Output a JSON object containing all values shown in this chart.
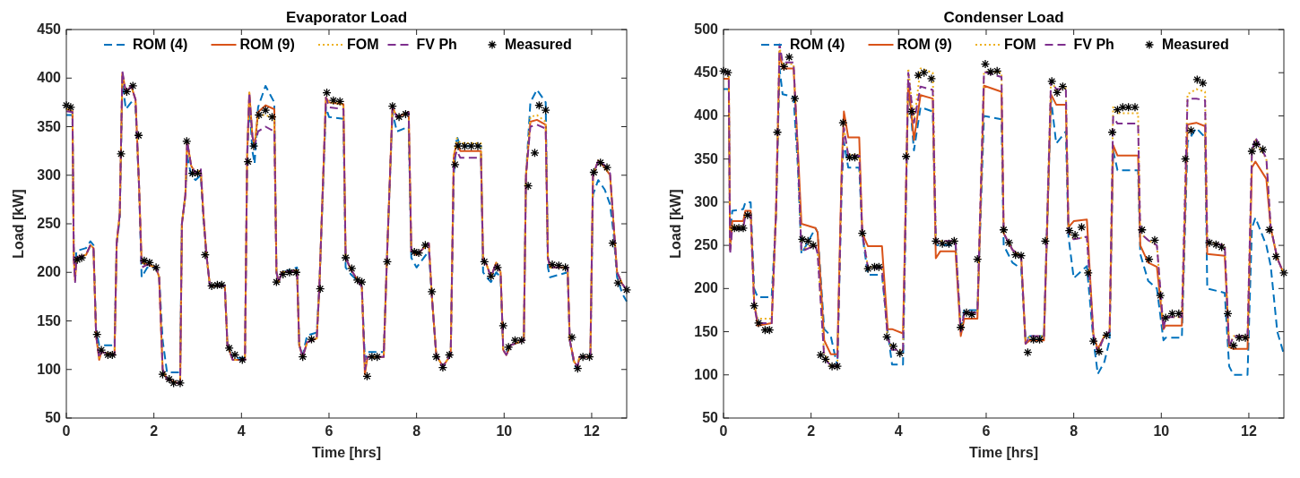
{
  "chart_data": [
    {
      "type": "line",
      "title": "Evaporator Load",
      "xlabel": "Time [hrs]",
      "ylabel": "Load [kW]",
      "xlim": [
        0,
        12.8
      ],
      "xticks": [
        0,
        2,
        4,
        6,
        8,
        10,
        12
      ],
      "ylim": [
        50,
        450
      ],
      "yticks": [
        50,
        100,
        150,
        200,
        250,
        300,
        350,
        400,
        450
      ],
      "grid": false,
      "legend": "top",
      "marker": "none",
      "x": [
        0,
        0.14,
        0.17,
        0.2,
        0.23,
        0.45,
        0.55,
        0.62,
        0.68,
        0.75,
        0.8,
        1.1,
        1.15,
        1.22,
        1.28,
        1.36,
        1.48,
        1.58,
        1.66,
        1.72,
        1.85,
        2.05,
        2.12,
        2.2,
        2.3,
        2.6,
        2.64,
        2.72,
        2.76,
        2.85,
        2.95,
        3.07,
        3.13,
        3.2,
        3.28,
        3.62,
        3.68,
        3.8,
        4.08,
        4.13,
        4.18,
        4.25,
        4.3,
        4.38,
        4.55,
        4.75,
        4.8,
        4.85,
        4.92,
        5.27,
        5.32,
        5.4,
        5.5,
        5.72,
        5.78,
        5.93,
        6.0,
        6.33,
        6.38,
        6.5,
        6.68,
        6.75,
        6.82,
        6.88,
        7.25,
        7.32,
        7.45,
        7.55,
        7.82,
        7.88,
        8.0,
        8.28,
        8.35,
        8.45,
        8.6,
        8.78,
        8.85,
        8.92,
        9.0,
        9.47,
        9.52,
        9.6,
        9.7,
        9.82,
        9.92,
        9.98,
        10.05,
        10.15,
        10.45,
        10.5,
        10.6,
        10.75,
        10.95,
        11.0,
        11.05,
        11.45,
        11.5,
        11.6,
        11.68,
        11.72,
        11.97,
        12.03,
        12.15,
        12.3,
        12.42,
        12.5,
        12.58,
        12.7,
        12.8
      ],
      "series": [
        {
          "name": "ROM (4)",
          "color": "#0072bd",
          "line_style": "dashed",
          "values": [
            362,
            362,
            220,
            200,
            222,
            225,
            232,
            228,
            140,
            125,
            125,
            125,
            230,
            255,
            395,
            368,
            375,
            370,
            290,
            195,
            205,
            205,
            195,
            130,
            97,
            97,
            250,
            280,
            320,
            300,
            295,
            300,
            255,
            218,
            185,
            186,
            125,
            112,
            112,
            315,
            375,
            325,
            312,
            370,
            392,
            375,
            200,
            190,
            200,
            205,
            125,
            115,
            135,
            138,
            185,
            370,
            360,
            358,
            205,
            198,
            190,
            185,
            110,
            118,
            118,
            210,
            365,
            345,
            350,
            215,
            205,
            222,
            175,
            115,
            103,
            115,
            300,
            340,
            330,
            330,
            200,
            195,
            190,
            200,
            195,
            120,
            118,
            125,
            130,
            300,
            375,
            388,
            375,
            205,
            195,
            200,
            130,
            105,
            100,
            113,
            113,
            280,
            295,
            285,
            270,
            240,
            195,
            178,
            170
          ]
        },
        {
          "name": "ROM (9)",
          "color": "#d95319",
          "line_style": "solid",
          "values": [
            368,
            366,
            215,
            192,
            215,
            218,
            228,
            225,
            135,
            110,
            118,
            115,
            230,
            260,
            405,
            385,
            392,
            378,
            290,
            210,
            208,
            205,
            195,
            100,
            90,
            85,
            250,
            280,
            335,
            310,
            302,
            305,
            260,
            218,
            186,
            186,
            125,
            110,
            110,
            320,
            385,
            340,
            330,
            365,
            372,
            368,
            200,
            190,
            200,
            202,
            125,
            113,
            128,
            132,
            185,
            380,
            375,
            373,
            215,
            203,
            190,
            185,
            95,
            113,
            113,
            210,
            370,
            360,
            365,
            222,
            218,
            230,
            175,
            115,
            103,
            115,
            320,
            333,
            325,
            325,
            212,
            208,
            195,
            210,
            200,
            120,
            115,
            125,
            130,
            300,
            355,
            357,
            352,
            215,
            205,
            205,
            130,
            108,
            103,
            113,
            113,
            300,
            315,
            308,
            300,
            250,
            200,
            188,
            182
          ]
        },
        {
          "name": "FOM",
          "color": "#edb120",
          "line_style": "dotted",
          "values": [
            368,
            366,
            215,
            192,
            215,
            218,
            228,
            225,
            135,
            112,
            118,
            115,
            230,
            260,
            405,
            385,
            392,
            378,
            290,
            210,
            208,
            205,
            195,
            100,
            90,
            85,
            250,
            280,
            335,
            310,
            302,
            305,
            260,
            218,
            186,
            186,
            125,
            110,
            110,
            320,
            385,
            340,
            330,
            362,
            362,
            358,
            200,
            190,
            200,
            202,
            125,
            113,
            128,
            132,
            185,
            380,
            375,
            373,
            215,
            203,
            190,
            185,
            100,
            113,
            113,
            210,
            370,
            360,
            365,
            222,
            218,
            230,
            175,
            115,
            103,
            115,
            320,
            338,
            333,
            333,
            212,
            208,
            195,
            210,
            200,
            120,
            115,
            125,
            130,
            300,
            360,
            362,
            355,
            215,
            205,
            205,
            130,
            108,
            103,
            113,
            113,
            300,
            315,
            308,
            300,
            250,
            200,
            188,
            182
          ]
        },
        {
          "name": "FV Ph",
          "color": "#7e2f8e",
          "line_style": "dashed",
          "values": [
            366,
            365,
            215,
            190,
            215,
            218,
            228,
            225,
            135,
            112,
            118,
            115,
            230,
            260,
            407,
            385,
            392,
            378,
            290,
            205,
            208,
            205,
            195,
            100,
            90,
            85,
            250,
            280,
            335,
            310,
            302,
            307,
            260,
            218,
            186,
            186,
            125,
            110,
            110,
            320,
            385,
            340,
            330,
            345,
            350,
            345,
            200,
            190,
            200,
            202,
            125,
            113,
            128,
            132,
            185,
            380,
            370,
            368,
            215,
            203,
            190,
            185,
            100,
            113,
            113,
            210,
            370,
            360,
            365,
            222,
            218,
            230,
            175,
            115,
            103,
            115,
            315,
            325,
            318,
            318,
            212,
            208,
            195,
            210,
            200,
            120,
            115,
            125,
            130,
            300,
            350,
            352,
            348,
            215,
            205,
            205,
            130,
            108,
            103,
            113,
            113,
            300,
            315,
            310,
            302,
            250,
            200,
            188,
            182
          ]
        },
        {
          "name": "Measured",
          "type": "scatter",
          "color": "#000000",
          "marker": "cross",
          "x": [
            0,
            0.1,
            0.25,
            0.35,
            0.7,
            0.8,
            0.95,
            1.05,
            1.25,
            1.38,
            1.52,
            1.65,
            1.78,
            1.9,
            2.05,
            2.2,
            2.35,
            2.45,
            2.6,
            2.75,
            2.88,
            3.0,
            3.17,
            3.32,
            3.45,
            3.55,
            3.72,
            3.85,
            4.02,
            4.15,
            4.28,
            4.4,
            4.55,
            4.7,
            4.8,
            4.95,
            5.1,
            5.25,
            5.4,
            5.6,
            5.8,
            5.95,
            6.1,
            6.25,
            6.38,
            6.52,
            6.65,
            6.75,
            6.87,
            6.98,
            7.1,
            7.33,
            7.45,
            7.6,
            7.75,
            7.95,
            8.05,
            8.2,
            8.35,
            8.45,
            8.6,
            8.75,
            8.88,
            8.95,
            9.1,
            9.25,
            9.4,
            9.55,
            9.7,
            9.85,
            9.98,
            10.1,
            10.25,
            10.4,
            10.55,
            10.7,
            10.8,
            10.95,
            11.1,
            11.25,
            11.4,
            11.55,
            11.68,
            11.8,
            11.95,
            12.05,
            12.2,
            12.35,
            12.48,
            12.6,
            12.8
          ],
          "values": [
            372,
            370,
            213,
            215,
            136,
            120,
            115,
            115,
            322,
            386,
            392,
            341,
            212,
            210,
            205,
            95,
            90,
            86,
            86,
            335,
            302,
            302,
            218,
            186,
            187,
            187,
            122,
            115,
            110,
            314,
            330,
            362,
            367,
            360,
            190,
            198,
            200,
            200,
            113,
            131,
            183,
            385,
            377,
            376,
            215,
            204,
            192,
            190,
            93,
            113,
            113,
            211,
            371,
            360,
            363,
            221,
            220,
            228,
            180,
            113,
            102,
            115,
            311,
            330,
            330,
            330,
            330,
            211,
            196,
            205,
            145,
            123,
            130,
            130,
            289,
            323,
            372,
            367,
            208,
            207,
            205,
            133,
            101,
            113,
            113,
            303,
            313,
            308,
            230,
            189,
            182
          ]
        }
      ]
    },
    {
      "type": "line",
      "title": "Condenser Load",
      "xlabel": "Time [hrs]",
      "ylabel": "Load [kW]",
      "xlim": [
        0,
        12.8
      ],
      "xticks": [
        0,
        2,
        4,
        6,
        8,
        10,
        12
      ],
      "ylim": [
        50,
        500
      ],
      "yticks": [
        50,
        100,
        150,
        200,
        250,
        300,
        350,
        400,
        450,
        500
      ],
      "grid": false,
      "legend": "top",
      "marker": "none",
      "x": [
        0,
        0.12,
        0.15,
        0.2,
        0.45,
        0.5,
        0.62,
        0.7,
        0.78,
        1.1,
        1.2,
        1.28,
        1.35,
        1.6,
        1.7,
        1.78,
        2.1,
        2.15,
        2.3,
        2.45,
        2.6,
        2.7,
        2.75,
        2.85,
        3.1,
        3.17,
        3.3,
        3.62,
        3.75,
        3.85,
        4.1,
        4.22,
        4.35,
        4.5,
        4.78,
        4.85,
        4.95,
        5.3,
        5.42,
        5.5,
        5.8,
        5.95,
        6.35,
        6.4,
        6.6,
        6.8,
        6.9,
        7.0,
        7.32,
        7.48,
        7.6,
        7.82,
        7.88,
        8.0,
        8.3,
        8.45,
        8.55,
        8.7,
        8.82,
        8.9,
        9.0,
        9.47,
        9.52,
        9.7,
        9.9,
        10.05,
        10.1,
        10.47,
        10.6,
        10.8,
        11.0,
        11.05,
        11.45,
        11.55,
        11.65,
        11.97,
        12.07,
        12.15,
        12.4,
        12.5,
        12.65,
        12.8
      ],
      "series": [
        {
          "name": "ROM (4)",
          "color": "#0072bd",
          "line_style": "dashed",
          "values": [
            431,
            431,
            260,
            290,
            292,
            300,
            300,
            200,
            190,
            190,
            285,
            455,
            425,
            422,
            340,
            240,
            270,
            265,
            153,
            145,
            110,
            320,
            370,
            340,
            340,
            262,
            216,
            216,
            150,
            112,
            112,
            440,
            360,
            410,
            405,
            250,
            250,
            250,
            150,
            175,
            175,
            400,
            396,
            250,
            230,
            223,
            140,
            145,
            145,
            420,
            368,
            382,
            260,
            212,
            226,
            140,
            101,
            115,
            140,
            360,
            337,
            337,
            240,
            209,
            200,
            140,
            143,
            143,
            370,
            386,
            375,
            200,
            195,
            110,
            100,
            100,
            270,
            282,
            250,
            226,
            150,
            124
          ]
        },
        {
          "name": "ROM (9)",
          "color": "#d95319",
          "line_style": "solid",
          "values": [
            443,
            443,
            245,
            278,
            278,
            290,
            290,
            185,
            157,
            160,
            290,
            475,
            455,
            455,
            360,
            275,
            270,
            265,
            140,
            124,
            124,
            340,
            405,
            375,
            375,
            264,
            249,
            249,
            153,
            153,
            148,
            440,
            372,
            424,
            420,
            235,
            243,
            243,
            145,
            165,
            165,
            435,
            428,
            264,
            245,
            236,
            136,
            140,
            140,
            425,
            413,
            413,
            271,
            278,
            280,
            146,
            130,
            145,
            150,
            366,
            354,
            354,
            250,
            230,
            225,
            153,
            157,
            157,
            390,
            392,
            388,
            240,
            238,
            132,
            130,
            130,
            340,
            347,
            327,
            270,
            235,
            217
          ]
        },
        {
          "name": "FOM",
          "color": "#edb120",
          "line_style": "dotted",
          "values": [
            452,
            450,
            245,
            272,
            272,
            285,
            285,
            180,
            165,
            165,
            290,
            480,
            460,
            460,
            350,
            245,
            252,
            240,
            125,
            110,
            110,
            330,
            385,
            355,
            355,
            264,
            225,
            225,
            143,
            129,
            129,
            455,
            392,
            455,
            450,
            254,
            255,
            255,
            150,
            172,
            172,
            451,
            450,
            264,
            245,
            236,
            136,
            145,
            145,
            441,
            430,
            432,
            265,
            257,
            260,
            146,
            126,
            145,
            150,
            410,
            403,
            403,
            264,
            256,
            250,
            153,
            167,
            167,
            425,
            431,
            428,
            254,
            250,
            132,
            145,
            145,
            358,
            372,
            350,
            271,
            235,
            217
          ]
        },
        {
          "name": "FV Ph",
          "color": "#7e2f8e",
          "line_style": "dashed",
          "values": [
            450,
            450,
            240,
            270,
            270,
            285,
            285,
            180,
            160,
            160,
            288,
            483,
            462,
            462,
            350,
            243,
            250,
            240,
            120,
            110,
            110,
            330,
            386,
            354,
            354,
            264,
            224,
            224,
            143,
            129,
            129,
            450,
            392,
            434,
            430,
            254,
            255,
            255,
            150,
            172,
            172,
            451,
            445,
            264,
            245,
            236,
            136,
            145,
            145,
            441,
            431,
            431,
            265,
            257,
            260,
            146,
            126,
            145,
            150,
            399,
            391,
            391,
            264,
            256,
            250,
            153,
            167,
            167,
            420,
            420,
            418,
            254,
            250,
            132,
            145,
            145,
            358,
            375,
            351,
            271,
            235,
            217
          ]
        },
        {
          "name": "Measured",
          "type": "scatter",
          "color": "#000000",
          "marker": "cross",
          "x": [
            0,
            0.1,
            0.25,
            0.35,
            0.45,
            0.55,
            0.7,
            0.8,
            0.95,
            1.05,
            1.23,
            1.38,
            1.5,
            1.63,
            1.8,
            1.93,
            2.05,
            2.22,
            2.33,
            2.48,
            2.6,
            2.73,
            2.88,
            3.0,
            3.17,
            3.3,
            3.45,
            3.55,
            3.73,
            3.88,
            4.03,
            4.17,
            4.3,
            4.45,
            4.58,
            4.75,
            4.85,
            5.0,
            5.15,
            5.27,
            5.42,
            5.55,
            5.67,
            5.8,
            5.98,
            6.1,
            6.25,
            6.4,
            6.52,
            6.67,
            6.8,
            6.95,
            7.08,
            7.22,
            7.35,
            7.5,
            7.62,
            7.75,
            7.9,
            8.03,
            8.18,
            8.33,
            8.45,
            8.58,
            8.75,
            8.88,
            9.0,
            9.12,
            9.25,
            9.4,
            9.56,
            9.72,
            9.85,
            9.98,
            10.1,
            10.25,
            10.4,
            10.55,
            10.68,
            10.82,
            10.95,
            11.1,
            11.25,
            11.38,
            11.52,
            11.65,
            11.78,
            11.92,
            12.07,
            12.17,
            12.32,
            12.47,
            12.62,
            12.8
          ],
          "values": [
            452,
            450,
            270,
            270,
            270,
            285,
            180,
            160,
            152,
            152,
            381,
            457,
            468,
            420,
            257,
            255,
            250,
            123,
            118,
            110,
            110,
            392,
            352,
            352,
            264,
            223,
            225,
            225,
            144,
            133,
            125,
            353,
            405,
            447,
            450,
            443,
            255,
            252,
            252,
            255,
            155,
            172,
            170,
            234,
            460,
            451,
            452,
            268,
            253,
            239,
            238,
            126,
            141,
            141,
            255,
            440,
            427,
            434,
            267,
            262,
            271,
            218,
            139,
            127,
            146,
            381,
            407,
            410,
            410,
            410,
            268,
            234,
            256,
            192,
            166,
            171,
            171,
            350,
            383,
            442,
            438,
            253,
            251,
            248,
            171,
            134,
            143,
            143,
            359,
            367,
            361,
            268,
            237,
            218
          ]
        }
      ]
    }
  ]
}
